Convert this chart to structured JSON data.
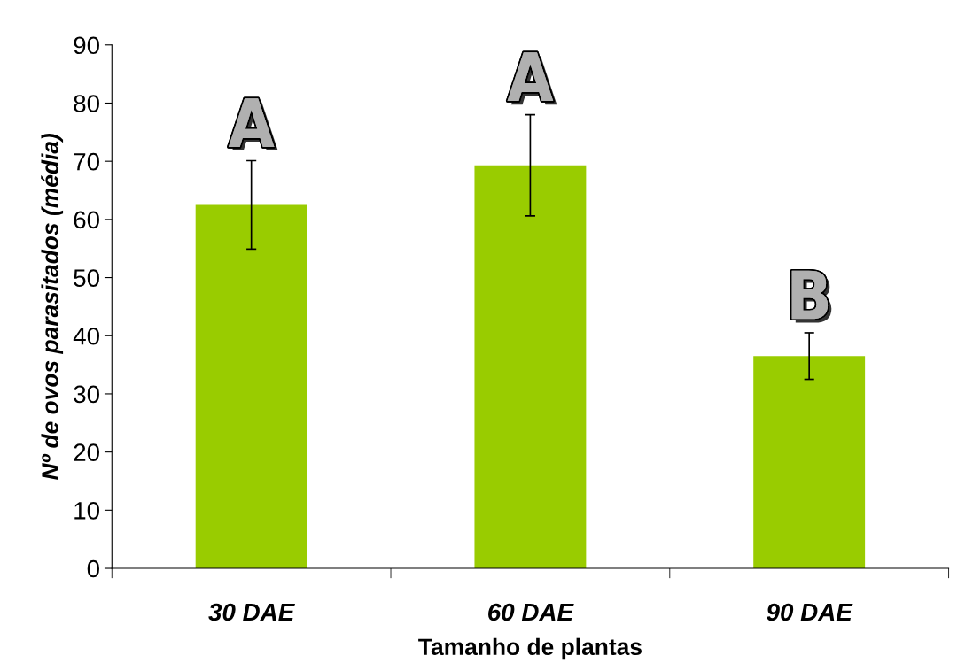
{
  "chart_data": {
    "type": "bar",
    "xlabel": "Tamanho de plantas",
    "ylabel": "Nº de ovos parasitados (média)",
    "categories": [
      "30 DAE",
      "60 DAE",
      "90 DAE"
    ],
    "values": [
      62.5,
      69.3,
      36.5
    ],
    "errors": [
      7.6,
      8.7,
      4.0
    ],
    "color": "#99cc00",
    "ylim": [
      0,
      90
    ],
    "yticks": [
      0,
      10,
      20,
      30,
      40,
      50,
      60,
      70,
      80,
      90
    ],
    "annotations": [
      "A",
      "A",
      "B"
    ],
    "grid": false,
    "legend": false
  }
}
